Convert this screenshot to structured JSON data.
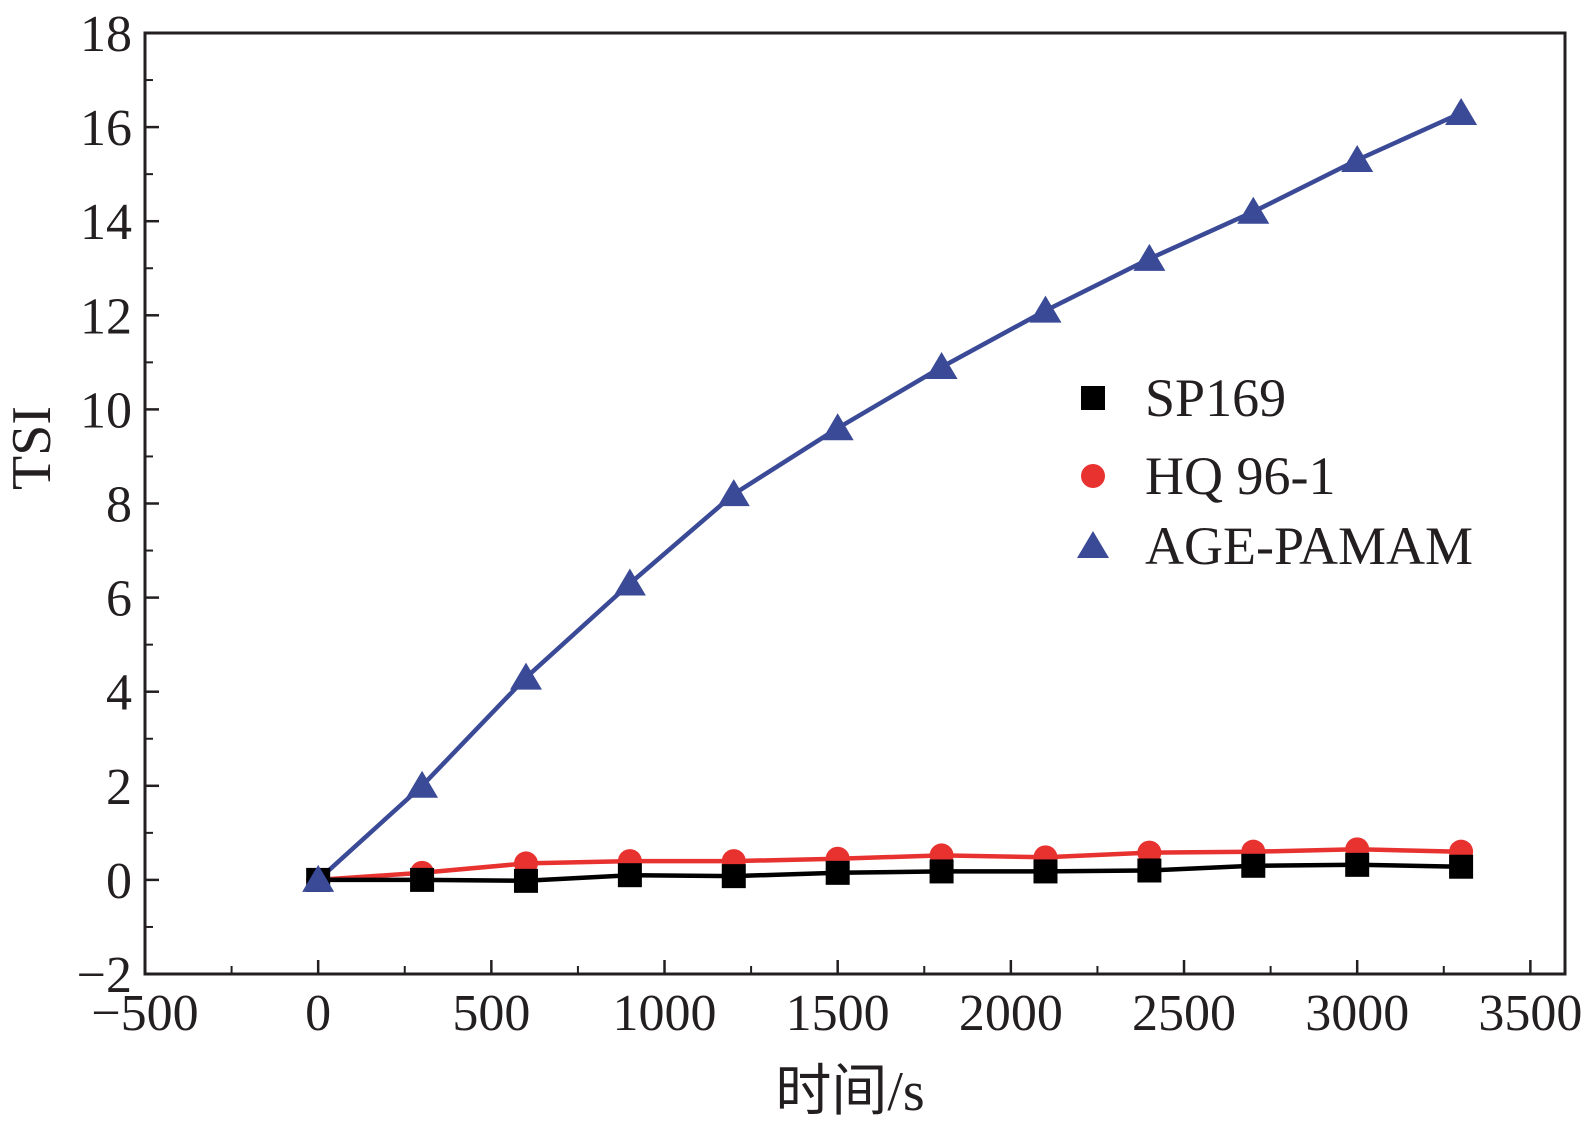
{
  "chart_data": {
    "type": "line",
    "title": "",
    "xlabel": "时间/s",
    "ylabel": "TSI",
    "xlim": [
      -500,
      3600
    ],
    "ylim": [
      -2,
      18
    ],
    "xticks": [
      -500,
      0,
      500,
      1000,
      1500,
      2000,
      2500,
      3000,
      3500
    ],
    "yticks": [
      -2,
      0,
      2,
      4,
      6,
      8,
      10,
      12,
      14,
      16,
      18
    ],
    "xtick_labels": [
      "−500",
      "0",
      "500",
      "1000",
      "1500",
      "2000",
      "2500",
      "3000",
      "3500"
    ],
    "ytick_labels": [
      "−2",
      "0",
      "2",
      "4",
      "6",
      "8",
      "10",
      "12",
      "14",
      "16",
      "18"
    ],
    "grid": false,
    "legend_position": "right",
    "series": [
      {
        "name": "SP169",
        "marker": "square",
        "color": "#000000",
        "x": [
          0,
          300,
          600,
          900,
          1200,
          1500,
          1800,
          2100,
          2400,
          2700,
          3000,
          3300
        ],
        "y": [
          0.0,
          0.0,
          -0.02,
          0.1,
          0.08,
          0.15,
          0.18,
          0.18,
          0.2,
          0.3,
          0.32,
          0.28
        ]
      },
      {
        "name": "HQ 96-1",
        "marker": "circle",
        "color": "#e8322f",
        "x": [
          0,
          300,
          600,
          900,
          1200,
          1500,
          1800,
          2100,
          2400,
          2700,
          3000,
          3300
        ],
        "y": [
          0.0,
          0.15,
          0.35,
          0.4,
          0.4,
          0.45,
          0.52,
          0.48,
          0.58,
          0.6,
          0.65,
          0.6
        ]
      },
      {
        "name": "AGE-PAMAM",
        "marker": "triangle",
        "color": "#3a4a96",
        "x": [
          0,
          300,
          600,
          900,
          1200,
          1500,
          1800,
          2100,
          2400,
          2700,
          3000,
          3300
        ],
        "y": [
          0.0,
          2.0,
          4.3,
          6.3,
          8.2,
          9.6,
          10.9,
          12.1,
          13.2,
          14.2,
          15.3,
          16.3
        ]
      }
    ]
  }
}
